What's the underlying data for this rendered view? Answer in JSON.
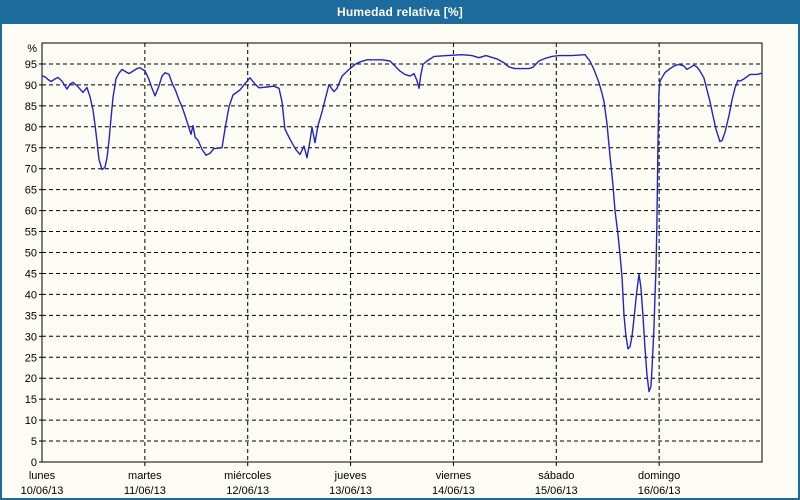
{
  "window": {
    "title": "Humedad relativa [%]",
    "colors": {
      "titlebar_bg": "#1d6b9d",
      "titlebar_text": "#ffffff",
      "window_bg": "#fdfdf5",
      "window_border": "#1d6b9d",
      "plot_border": "#000000",
      "grid": "#000000",
      "line": "#2323c3",
      "label_text": "#000000"
    }
  },
  "chart_data": {
    "type": "line",
    "title": "Humedad relativa [%]",
    "legend": "none",
    "grid": "dashed",
    "y_axis": {
      "unit_label": "%",
      "min": 0,
      "max": 100,
      "tick_step": 5,
      "max_labeled_tick": 95
    },
    "x_axis": {
      "unit": "days",
      "range_days": 7,
      "days": [
        {
          "name": "lunes",
          "date": "10/06/13"
        },
        {
          "name": "martes",
          "date": "11/06/13"
        },
        {
          "name": "miércoles",
          "date": "12/06/13"
        },
        {
          "name": "jueves",
          "date": "13/06/13"
        },
        {
          "name": "viernes",
          "date": "14/06/13"
        },
        {
          "name": "sábado",
          "date": "15/06/13"
        },
        {
          "name": "domingo",
          "date": "16/06/13"
        }
      ]
    },
    "series": [
      {
        "name": "Humedad relativa",
        "unit": "%",
        "color": "#2323c3",
        "points": [
          [
            0.0,
            92.2
          ],
          [
            0.029,
            91.9
          ],
          [
            0.058,
            91.3
          ],
          [
            0.088,
            90.8
          ],
          [
            0.126,
            91.4
          ],
          [
            0.156,
            91.8
          ],
          [
            0.194,
            90.9
          ],
          [
            0.243,
            89.0
          ],
          [
            0.272,
            90.2
          ],
          [
            0.301,
            90.6
          ],
          [
            0.34,
            89.8
          ],
          [
            0.399,
            88.2
          ],
          [
            0.437,
            89.4
          ],
          [
            0.467,
            87.2
          ],
          [
            0.496,
            84.0
          ],
          [
            0.515,
            80.5
          ],
          [
            0.535,
            76.5
          ],
          [
            0.554,
            72.2
          ],
          [
            0.583,
            69.8
          ],
          [
            0.612,
            70.3
          ],
          [
            0.632,
            72.6
          ],
          [
            0.651,
            76.7
          ],
          [
            0.671,
            82.0
          ],
          [
            0.69,
            87.0
          ],
          [
            0.719,
            91.5
          ],
          [
            0.749,
            92.8
          ],
          [
            0.778,
            93.7
          ],
          [
            0.817,
            93.1
          ],
          [
            0.846,
            92.7
          ],
          [
            0.885,
            93.3
          ],
          [
            0.924,
            93.9
          ],
          [
            0.953,
            94.1
          ],
          [
            0.982,
            93.6
          ],
          [
            1.001,
            93.4
          ],
          [
            1.04,
            91.3
          ],
          [
            1.069,
            89.2
          ],
          [
            1.099,
            87.4
          ],
          [
            1.137,
            89.7
          ],
          [
            1.167,
            92.1
          ],
          [
            1.196,
            92.9
          ],
          [
            1.235,
            92.5
          ],
          [
            1.264,
            90.5
          ],
          [
            1.303,
            88.4
          ],
          [
            1.332,
            86.4
          ],
          [
            1.361,
            84.8
          ],
          [
            1.39,
            82.7
          ],
          [
            1.419,
            80.5
          ],
          [
            1.449,
            78.2
          ],
          [
            1.468,
            80.3
          ],
          [
            1.488,
            77.5
          ],
          [
            1.517,
            76.8
          ],
          [
            1.556,
            74.6
          ],
          [
            1.595,
            73.2
          ],
          [
            1.634,
            73.7
          ],
          [
            1.672,
            74.8
          ],
          [
            1.75,
            75.0
          ],
          [
            1.779,
            79.5
          ],
          [
            1.818,
            84.8
          ],
          [
            1.857,
            87.6
          ],
          [
            1.925,
            88.8
          ],
          [
            1.974,
            90.3
          ],
          [
            2.022,
            91.7
          ],
          [
            2.071,
            90.2
          ],
          [
            2.11,
            89.3
          ],
          [
            2.187,
            89.5
          ],
          [
            2.255,
            89.7
          ],
          [
            2.304,
            89.2
          ],
          [
            2.333,
            86.0
          ],
          [
            2.362,
            79.5
          ],
          [
            2.401,
            77.5
          ],
          [
            2.43,
            76.2
          ],
          [
            2.469,
            74.5
          ],
          [
            2.508,
            73.4
          ],
          [
            2.547,
            75.4
          ],
          [
            2.576,
            72.6
          ],
          [
            2.605,
            76.5
          ],
          [
            2.625,
            79.9
          ],
          [
            2.654,
            76.2
          ],
          [
            2.683,
            80.3
          ],
          [
            2.722,
            83.5
          ],
          [
            2.751,
            86.4
          ],
          [
            2.79,
            90.1
          ],
          [
            2.819,
            89.0
          ],
          [
            2.839,
            88.4
          ],
          [
            2.868,
            89.2
          ],
          [
            2.917,
            92.1
          ],
          [
            2.985,
            93.7
          ],
          [
            3.043,
            94.9
          ],
          [
            3.092,
            95.5
          ],
          [
            3.16,
            96.0
          ],
          [
            3.306,
            96.0
          ],
          [
            3.383,
            95.7
          ],
          [
            3.432,
            94.5
          ],
          [
            3.481,
            93.3
          ],
          [
            3.529,
            92.5
          ],
          [
            3.578,
            92.1
          ],
          [
            3.617,
            92.7
          ],
          [
            3.646,
            91.0
          ],
          [
            3.665,
            89.2
          ],
          [
            3.684,
            92.5
          ],
          [
            3.704,
            94.9
          ],
          [
            3.743,
            95.7
          ],
          [
            3.811,
            96.8
          ],
          [
            3.937,
            97.0
          ],
          [
            4.083,
            97.2
          ],
          [
            4.18,
            97.0
          ],
          [
            4.248,
            96.5
          ],
          [
            4.316,
            97.0
          ],
          [
            4.423,
            96.2
          ],
          [
            4.491,
            95.3
          ],
          [
            4.54,
            94.3
          ],
          [
            4.598,
            93.9
          ],
          [
            4.734,
            93.9
          ],
          [
            4.773,
            94.2
          ],
          [
            4.831,
            95.7
          ],
          [
            4.889,
            96.3
          ],
          [
            4.957,
            96.8
          ],
          [
            5.026,
            97.0
          ],
          [
            5.152,
            97.0
          ],
          [
            5.279,
            97.2
          ],
          [
            5.327,
            95.7
          ],
          [
            5.366,
            93.7
          ],
          [
            5.415,
            90.5
          ],
          [
            5.444,
            88.0
          ],
          [
            5.464,
            86.0
          ],
          [
            5.493,
            80.7
          ],
          [
            5.522,
            73.0
          ],
          [
            5.551,
            66.0
          ],
          [
            5.571,
            60.0
          ],
          [
            5.6,
            54.3
          ],
          [
            5.619,
            49.5
          ],
          [
            5.639,
            44.2
          ],
          [
            5.658,
            35.0
          ],
          [
            5.678,
            30.0
          ],
          [
            5.697,
            27.0
          ],
          [
            5.717,
            27.5
          ],
          [
            5.736,
            30.0
          ],
          [
            5.755,
            34.0
          ],
          [
            5.775,
            39.0
          ],
          [
            5.794,
            43.0
          ],
          [
            5.804,
            44.8
          ],
          [
            5.823,
            41.7
          ],
          [
            5.843,
            34.8
          ],
          [
            5.862,
            27.5
          ],
          [
            5.881,
            21.0
          ],
          [
            5.901,
            16.8
          ],
          [
            5.92,
            18.0
          ],
          [
            5.93,
            21.8
          ],
          [
            5.949,
            31.6
          ],
          [
            5.959,
            38.9
          ],
          [
            5.969,
            46.2
          ],
          [
            5.978,
            56.8
          ],
          [
            5.988,
            75.0
          ],
          [
            5.998,
            88.0
          ],
          [
            6.008,
            90.9
          ],
          [
            6.027,
            91.7
          ],
          [
            6.056,
            92.9
          ],
          [
            6.095,
            93.7
          ],
          [
            6.144,
            94.5
          ],
          [
            6.192,
            94.9
          ],
          [
            6.241,
            94.5
          ],
          [
            6.27,
            93.7
          ],
          [
            6.299,
            94.1
          ],
          [
            6.338,
            94.7
          ],
          [
            6.367,
            94.3
          ],
          [
            6.397,
            93.3
          ],
          [
            6.435,
            91.7
          ],
          [
            6.465,
            88.8
          ],
          [
            6.494,
            86.0
          ],
          [
            6.523,
            82.7
          ],
          [
            6.552,
            79.5
          ],
          [
            6.591,
            76.5
          ],
          [
            6.611,
            76.7
          ],
          [
            6.64,
            78.7
          ],
          [
            6.679,
            82.7
          ],
          [
            6.708,
            86.4
          ],
          [
            6.737,
            89.2
          ],
          [
            6.766,
            91.1
          ],
          [
            6.786,
            90.9
          ],
          [
            6.815,
            91.3
          ],
          [
            6.844,
            91.8
          ],
          [
            6.883,
            92.5
          ],
          [
            6.951,
            92.5
          ],
          [
            7.0,
            92.8
          ]
        ]
      }
    ]
  }
}
